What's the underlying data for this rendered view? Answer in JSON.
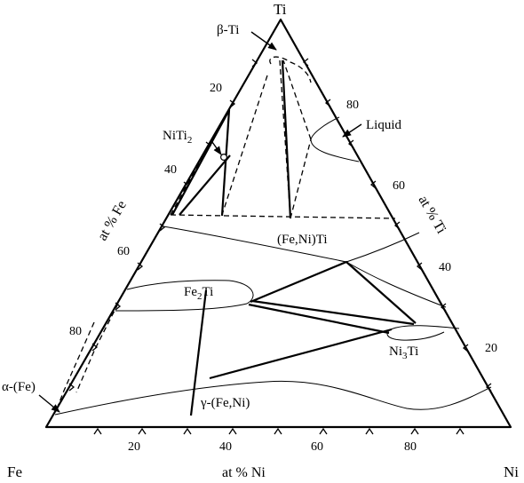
{
  "corners": {
    "top": "Ti",
    "left": "Fe",
    "right": "Ni"
  },
  "axes": {
    "bottom": {
      "title": "at % Ni",
      "ticks": [
        "20",
        "40",
        "60",
        "80"
      ]
    },
    "left": {
      "title": "at % Fe",
      "ticks": [
        "20",
        "40",
        "60",
        "80"
      ]
    },
    "right": {
      "title": "at % Ti",
      "ticks": [
        "80",
        "60",
        "40",
        "20"
      ]
    }
  },
  "phases": {
    "beta_ti": "β-Ti",
    "liquid": "Liquid",
    "niti2": "NiTi",
    "niti2_sub": "2",
    "feni_ti": "(Fe,Ni)Ti",
    "fe2ti_a": "Fe",
    "fe2ti_sub": "2",
    "fe2ti_b": "Ti",
    "ni3ti_a": "Ni",
    "ni3ti_sub": "3",
    "ni3ti_b": "Ti",
    "gamma": "γ-(Fe,Ni)",
    "alpha": "α-(Fe)"
  }
}
